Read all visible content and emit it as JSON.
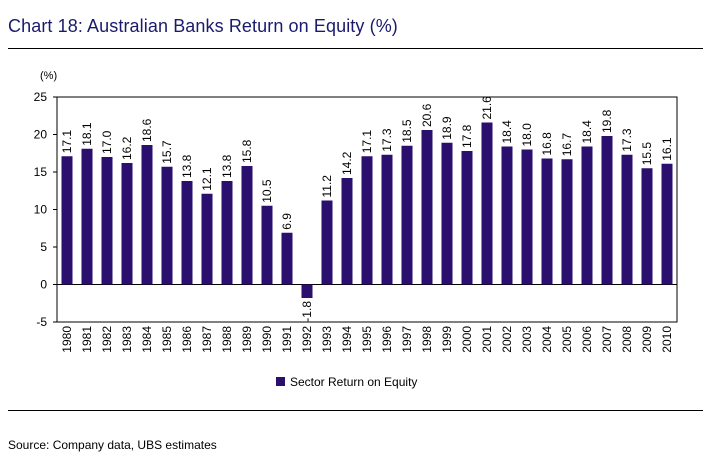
{
  "title": "Chart 18: Australian Banks Return on Equity (%)",
  "source": "Source:  Company data, UBS estimates",
  "colors": {
    "bar": "#2a0f6e",
    "title": "#1a1a6e"
  },
  "chart_data": {
    "type": "bar",
    "ylabel": "(%)",
    "ylim": [
      -5,
      25
    ],
    "yticks": [
      -5,
      0,
      5,
      10,
      15,
      20,
      25
    ],
    "grid": false,
    "legend": "bottom-center",
    "categories": [
      "1980",
      "1981",
      "1982",
      "1983",
      "1984",
      "1985",
      "1986",
      "1987",
      "1988",
      "1989",
      "1990",
      "1991",
      "1992",
      "1993",
      "1994",
      "1995",
      "1996",
      "1997",
      "1998",
      "1999",
      "2000",
      "2001",
      "2002",
      "2003",
      "2004",
      "2005",
      "2006",
      "2007",
      "2008",
      "2009",
      "2010"
    ],
    "series": [
      {
        "name": "Sector Return on Equity",
        "values": [
          17.1,
          18.1,
          17.0,
          16.2,
          18.6,
          15.7,
          13.8,
          12.1,
          13.8,
          15.8,
          10.5,
          6.9,
          -1.8,
          11.2,
          14.2,
          17.1,
          17.3,
          18.5,
          20.6,
          18.9,
          17.8,
          21.6,
          18.4,
          18.0,
          16.8,
          16.7,
          18.4,
          19.8,
          17.3,
          15.5,
          16.1
        ]
      }
    ]
  }
}
